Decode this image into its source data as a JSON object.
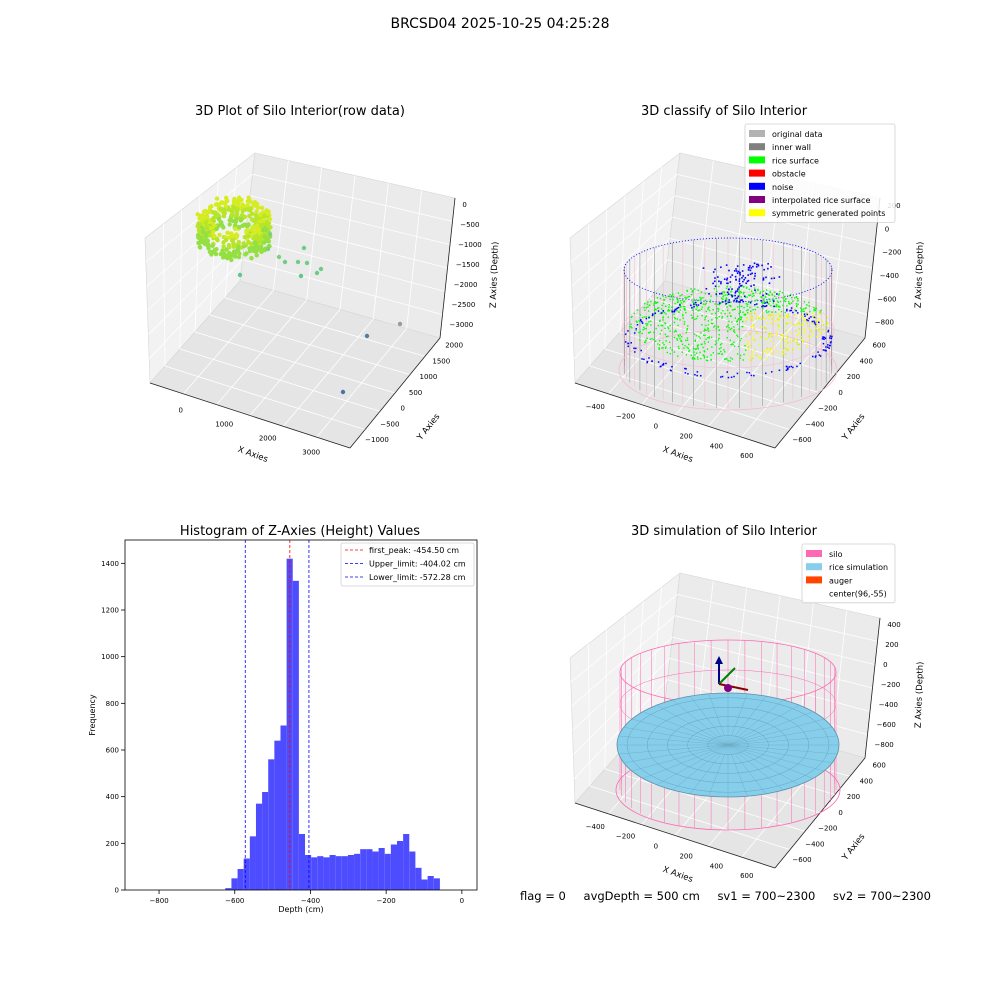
{
  "suptitle": "BRCSD04 2025-10-25 04:25:28",
  "panels": {
    "raw": {
      "title": "3D Plot of Silo Interior(row data)",
      "x_label": "X Axies",
      "y_label": "Y Axies",
      "z_label": "Z Axies (Depth)",
      "x_ticks": [
        "0",
        "1000",
        "2000",
        "3000"
      ],
      "y_ticks": [
        "2000",
        "1500",
        "1000",
        "500",
        "0",
        "−500",
        "−1000"
      ],
      "z_ticks": [
        "0",
        "−500",
        "−1000",
        "−1500",
        "−2000",
        "−2500",
        "−3000"
      ]
    },
    "classify": {
      "title": "3D classify of Silo Interior",
      "x_label": "X Axies",
      "y_label": "Y Axies",
      "z_label": "Z Axies (Depth)",
      "x_ticks": [
        "−400",
        "−200",
        "0",
        "200",
        "400",
        "600"
      ],
      "y_ticks": [
        "600",
        "400",
        "200",
        "0",
        "−200",
        "−400",
        "−600"
      ],
      "z_ticks": [
        "200",
        "0",
        "−200",
        "−400",
        "−600",
        "−800"
      ],
      "legend": [
        {
          "label": "original data",
          "color": "#b3b3b3"
        },
        {
          "label": "inner wall",
          "color": "#808080"
        },
        {
          "label": "rice surface",
          "color": "#00ff00"
        },
        {
          "label": "obstacle",
          "color": "#ff0000"
        },
        {
          "label": "noise",
          "color": "#0000ff"
        },
        {
          "label": "interpolated rice surface",
          "color": "#800080"
        },
        {
          "label": "symmetric generated points",
          "color": "#ffff00"
        }
      ]
    },
    "simulation": {
      "title": "3D simulation of Silo Interior",
      "x_label": "X Axies",
      "y_label": "Y Axies",
      "z_label": "Z Axies (Depth)",
      "x_ticks": [
        "−400",
        "−200",
        "0",
        "200",
        "400",
        "600"
      ],
      "y_ticks": [
        "600",
        "400",
        "200",
        "0",
        "−200",
        "−400",
        "−600"
      ],
      "z_ticks": [
        "400",
        "200",
        "0",
        "−200",
        "−400",
        "−600",
        "−800"
      ],
      "legend": [
        {
          "label": "silo",
          "color": "#ff69b4"
        },
        {
          "label": "rice simulation",
          "color": "#87ceeb"
        },
        {
          "label": "auger",
          "color": "#ff4500"
        },
        {
          "label": "center(96,-55)",
          "color": "#ffffff"
        }
      ]
    }
  },
  "footer": {
    "flag": "flag = 0",
    "avg": "avgDepth = 500 cm",
    "sv1": "sv1 = 700~2300",
    "sv2": "sv2 = 700~2300"
  },
  "colors": {
    "bar": "#4d4dff",
    "peak": "#ff0000",
    "limit": "#0000ff",
    "pane": "#f2f2f2"
  },
  "chart_data": {
    "type": "bar",
    "title": "Histogram of Z-Axies (Height) Values",
    "xlabel": "Depth (cm)",
    "ylabel": "Frequency",
    "xlim": [
      -890,
      40
    ],
    "ylim": [
      0,
      1500
    ],
    "x_ticks": [
      -800,
      -600,
      -400,
      -200,
      0
    ],
    "y_ticks": [
      0,
      200,
      400,
      600,
      800,
      1000,
      1200,
      1400
    ],
    "x_tick_labels": [
      "−800",
      "−600",
      "−400",
      "−200",
      "0"
    ],
    "y_tick_labels": [
      "0",
      "200",
      "400",
      "600",
      "800",
      "1000",
      "1200",
      "1400"
    ],
    "bin_start": -625,
    "bin_width": 16.2,
    "values": [
      8,
      50,
      90,
      135,
      230,
      370,
      420,
      560,
      640,
      705,
      1420,
      1325,
      240,
      150,
      140,
      145,
      140,
      150,
      145,
      145,
      150,
      155,
      175,
      175,
      165,
      180,
      155,
      195,
      210,
      240,
      165,
      95,
      45,
      60,
      50
    ],
    "lines": [
      {
        "label": "first_peak: -454.50 cm",
        "x": -454.5,
        "color": "#ff0000"
      },
      {
        "label": "Upper_limit: -404.02 cm",
        "x": -404.02,
        "color": "#0000ff"
      },
      {
        "label": "Lower_limit: -572.28 cm",
        "x": -572.28,
        "color": "#0000ff"
      }
    ],
    "legend_position": "upper right"
  }
}
